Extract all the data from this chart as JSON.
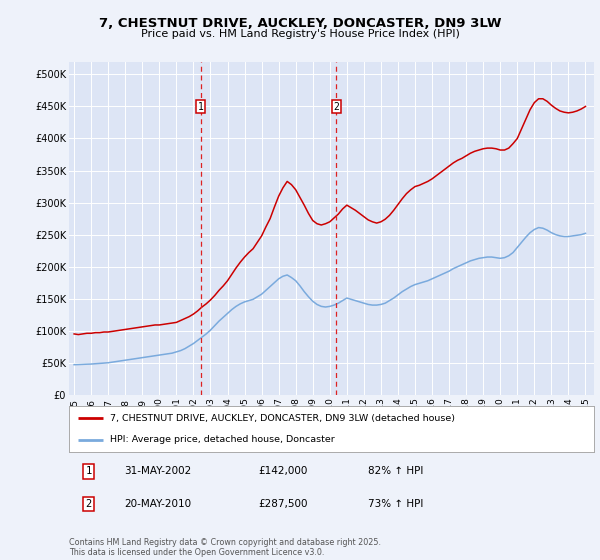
{
  "title": "7, CHESTNUT DRIVE, AUCKLEY, DONCASTER, DN9 3LW",
  "subtitle": "Price paid vs. HM Land Registry's House Price Index (HPI)",
  "background_color": "#eef2fa",
  "plot_bg_color": "#dde5f5",
  "grid_color": "#ffffff",
  "xlim_left": 1994.7,
  "xlim_right": 2025.5,
  "ylim": [
    0,
    520000
  ],
  "yticks": [
    0,
    50000,
    100000,
    150000,
    200000,
    250000,
    300000,
    350000,
    400000,
    450000,
    500000
  ],
  "ytick_labels": [
    "£0",
    "£50K",
    "£100K",
    "£150K",
    "£200K",
    "£250K",
    "£300K",
    "£350K",
    "£400K",
    "£450K",
    "£500K"
  ],
  "xticks": [
    1995,
    1996,
    1997,
    1998,
    1999,
    2000,
    2001,
    2002,
    2003,
    2004,
    2005,
    2006,
    2007,
    2008,
    2009,
    2010,
    2011,
    2012,
    2013,
    2014,
    2015,
    2016,
    2017,
    2018,
    2019,
    2020,
    2021,
    2022,
    2023,
    2024,
    2025
  ],
  "red_line_color": "#cc0000",
  "blue_line_color": "#7aaadd",
  "vline_color": "#dd2222",
  "marker1_x": 2002.42,
  "marker2_x": 2010.38,
  "legend_line1": "7, CHESTNUT DRIVE, AUCKLEY, DONCASTER, DN9 3LW (detached house)",
  "legend_line2": "HPI: Average price, detached house, Doncaster",
  "table_row1": [
    "1",
    "31-MAY-2002",
    "£142,000",
    "82% ↑ HPI"
  ],
  "table_row2": [
    "2",
    "20-MAY-2010",
    "£287,500",
    "73% ↑ HPI"
  ],
  "footer": "Contains HM Land Registry data © Crown copyright and database right 2025.\nThis data is licensed under the Open Government Licence v3.0.",
  "red_hpi_x": [
    1995.0,
    1995.25,
    1995.5,
    1995.75,
    1996.0,
    1996.25,
    1996.5,
    1996.75,
    1997.0,
    1997.25,
    1997.5,
    1997.75,
    1998.0,
    1998.25,
    1998.5,
    1998.75,
    1999.0,
    1999.25,
    1999.5,
    1999.75,
    2000.0,
    2000.25,
    2000.5,
    2000.75,
    2001.0,
    2001.25,
    2001.5,
    2001.75,
    2002.0,
    2002.25,
    2002.5,
    2002.75,
    2003.0,
    2003.25,
    2003.5,
    2003.75,
    2004.0,
    2004.25,
    2004.5,
    2004.75,
    2005.0,
    2005.25,
    2005.5,
    2005.75,
    2006.0,
    2006.25,
    2006.5,
    2006.75,
    2007.0,
    2007.25,
    2007.5,
    2007.75,
    2008.0,
    2008.25,
    2008.5,
    2008.75,
    2009.0,
    2009.25,
    2009.5,
    2009.75,
    2010.0,
    2010.25,
    2010.5,
    2010.75,
    2011.0,
    2011.25,
    2011.5,
    2011.75,
    2012.0,
    2012.25,
    2012.5,
    2012.75,
    2013.0,
    2013.25,
    2013.5,
    2013.75,
    2014.0,
    2014.25,
    2014.5,
    2014.75,
    2015.0,
    2015.25,
    2015.5,
    2015.75,
    2016.0,
    2016.25,
    2016.5,
    2016.75,
    2017.0,
    2017.25,
    2017.5,
    2017.75,
    2018.0,
    2018.25,
    2018.5,
    2018.75,
    2019.0,
    2019.25,
    2019.5,
    2019.75,
    2020.0,
    2020.25,
    2020.5,
    2020.75,
    2021.0,
    2021.25,
    2021.5,
    2021.75,
    2022.0,
    2022.25,
    2022.5,
    2022.75,
    2023.0,
    2023.25,
    2023.5,
    2023.75,
    2024.0,
    2024.25,
    2024.5,
    2024.75,
    2025.0
  ],
  "red_hpi_y": [
    95000,
    94000,
    95000,
    96000,
    96000,
    97000,
    97000,
    98000,
    98000,
    99000,
    100000,
    101000,
    102000,
    103000,
    104000,
    105000,
    106000,
    107000,
    108000,
    109000,
    109000,
    110000,
    111000,
    112000,
    113000,
    116000,
    119000,
    122000,
    126000,
    131000,
    137000,
    142000,
    148000,
    155000,
    163000,
    170000,
    178000,
    188000,
    198000,
    207000,
    215000,
    222000,
    228000,
    238000,
    248000,
    262000,
    275000,
    293000,
    310000,
    323000,
    333000,
    328000,
    320000,
    308000,
    296000,
    283000,
    272000,
    267000,
    265000,
    267000,
    270000,
    276000,
    282000,
    290000,
    296000,
    292000,
    288000,
    283000,
    278000,
    273000,
    270000,
    268000,
    270000,
    274000,
    280000,
    288000,
    297000,
    306000,
    314000,
    320000,
    325000,
    327000,
    330000,
    333000,
    337000,
    342000,
    347000,
    352000,
    357000,
    362000,
    366000,
    369000,
    373000,
    377000,
    380000,
    382000,
    384000,
    385000,
    385000,
    384000,
    382000,
    382000,
    385000,
    392000,
    400000,
    415000,
    430000,
    445000,
    456000,
    462000,
    462000,
    458000,
    452000,
    447000,
    443000,
    441000,
    440000,
    441000,
    443000,
    446000,
    450000
  ],
  "blue_hpi_x": [
    1995.0,
    1995.25,
    1995.5,
    1995.75,
    1996.0,
    1996.25,
    1996.5,
    1996.75,
    1997.0,
    1997.25,
    1997.5,
    1997.75,
    1998.0,
    1998.25,
    1998.5,
    1998.75,
    1999.0,
    1999.25,
    1999.5,
    1999.75,
    2000.0,
    2000.25,
    2000.5,
    2000.75,
    2001.0,
    2001.25,
    2001.5,
    2001.75,
    2002.0,
    2002.25,
    2002.5,
    2002.75,
    2003.0,
    2003.25,
    2003.5,
    2003.75,
    2004.0,
    2004.25,
    2004.5,
    2004.75,
    2005.0,
    2005.25,
    2005.5,
    2005.75,
    2006.0,
    2006.25,
    2006.5,
    2006.75,
    2007.0,
    2007.25,
    2007.5,
    2007.75,
    2008.0,
    2008.25,
    2008.5,
    2008.75,
    2009.0,
    2009.25,
    2009.5,
    2009.75,
    2010.0,
    2010.25,
    2010.5,
    2010.75,
    2011.0,
    2011.25,
    2011.5,
    2011.75,
    2012.0,
    2012.25,
    2012.5,
    2012.75,
    2013.0,
    2013.25,
    2013.5,
    2013.75,
    2014.0,
    2014.25,
    2014.5,
    2014.75,
    2015.0,
    2015.25,
    2015.5,
    2015.75,
    2016.0,
    2016.25,
    2016.5,
    2016.75,
    2017.0,
    2017.25,
    2017.5,
    2017.75,
    2018.0,
    2018.25,
    2018.5,
    2018.75,
    2019.0,
    2019.25,
    2019.5,
    2019.75,
    2020.0,
    2020.25,
    2020.5,
    2020.75,
    2021.0,
    2021.25,
    2021.5,
    2021.75,
    2022.0,
    2022.25,
    2022.5,
    2022.75,
    2023.0,
    2023.25,
    2023.5,
    2023.75,
    2024.0,
    2024.25,
    2024.5,
    2024.75,
    2025.0
  ],
  "blue_hpi_y": [
    47000,
    47200,
    47500,
    47800,
    48000,
    48500,
    49000,
    49500,
    50000,
    51000,
    52000,
    53000,
    54000,
    55000,
    56000,
    57000,
    58000,
    59000,
    60000,
    61000,
    62000,
    63000,
    64000,
    65000,
    67000,
    69000,
    72000,
    76000,
    80000,
    85000,
    90000,
    95000,
    101000,
    108000,
    115000,
    121000,
    127000,
    133000,
    138000,
    142000,
    145000,
    147000,
    149000,
    153000,
    157000,
    163000,
    169000,
    175000,
    181000,
    185000,
    187000,
    183000,
    178000,
    170000,
    161000,
    153000,
    146000,
    141000,
    138000,
    137000,
    138000,
    140000,
    143000,
    147000,
    151000,
    149000,
    147000,
    145000,
    143000,
    141000,
    140000,
    140000,
    141000,
    143000,
    147000,
    151000,
    156000,
    161000,
    165000,
    169000,
    172000,
    174000,
    176000,
    178000,
    181000,
    184000,
    187000,
    190000,
    193000,
    197000,
    200000,
    203000,
    206000,
    209000,
    211000,
    213000,
    214000,
    215000,
    215000,
    214000,
    213000,
    214000,
    217000,
    222000,
    230000,
    238000,
    246000,
    253000,
    258000,
    261000,
    260000,
    257000,
    253000,
    250000,
    248000,
    247000,
    247000,
    248000,
    249000,
    250000,
    252000
  ]
}
